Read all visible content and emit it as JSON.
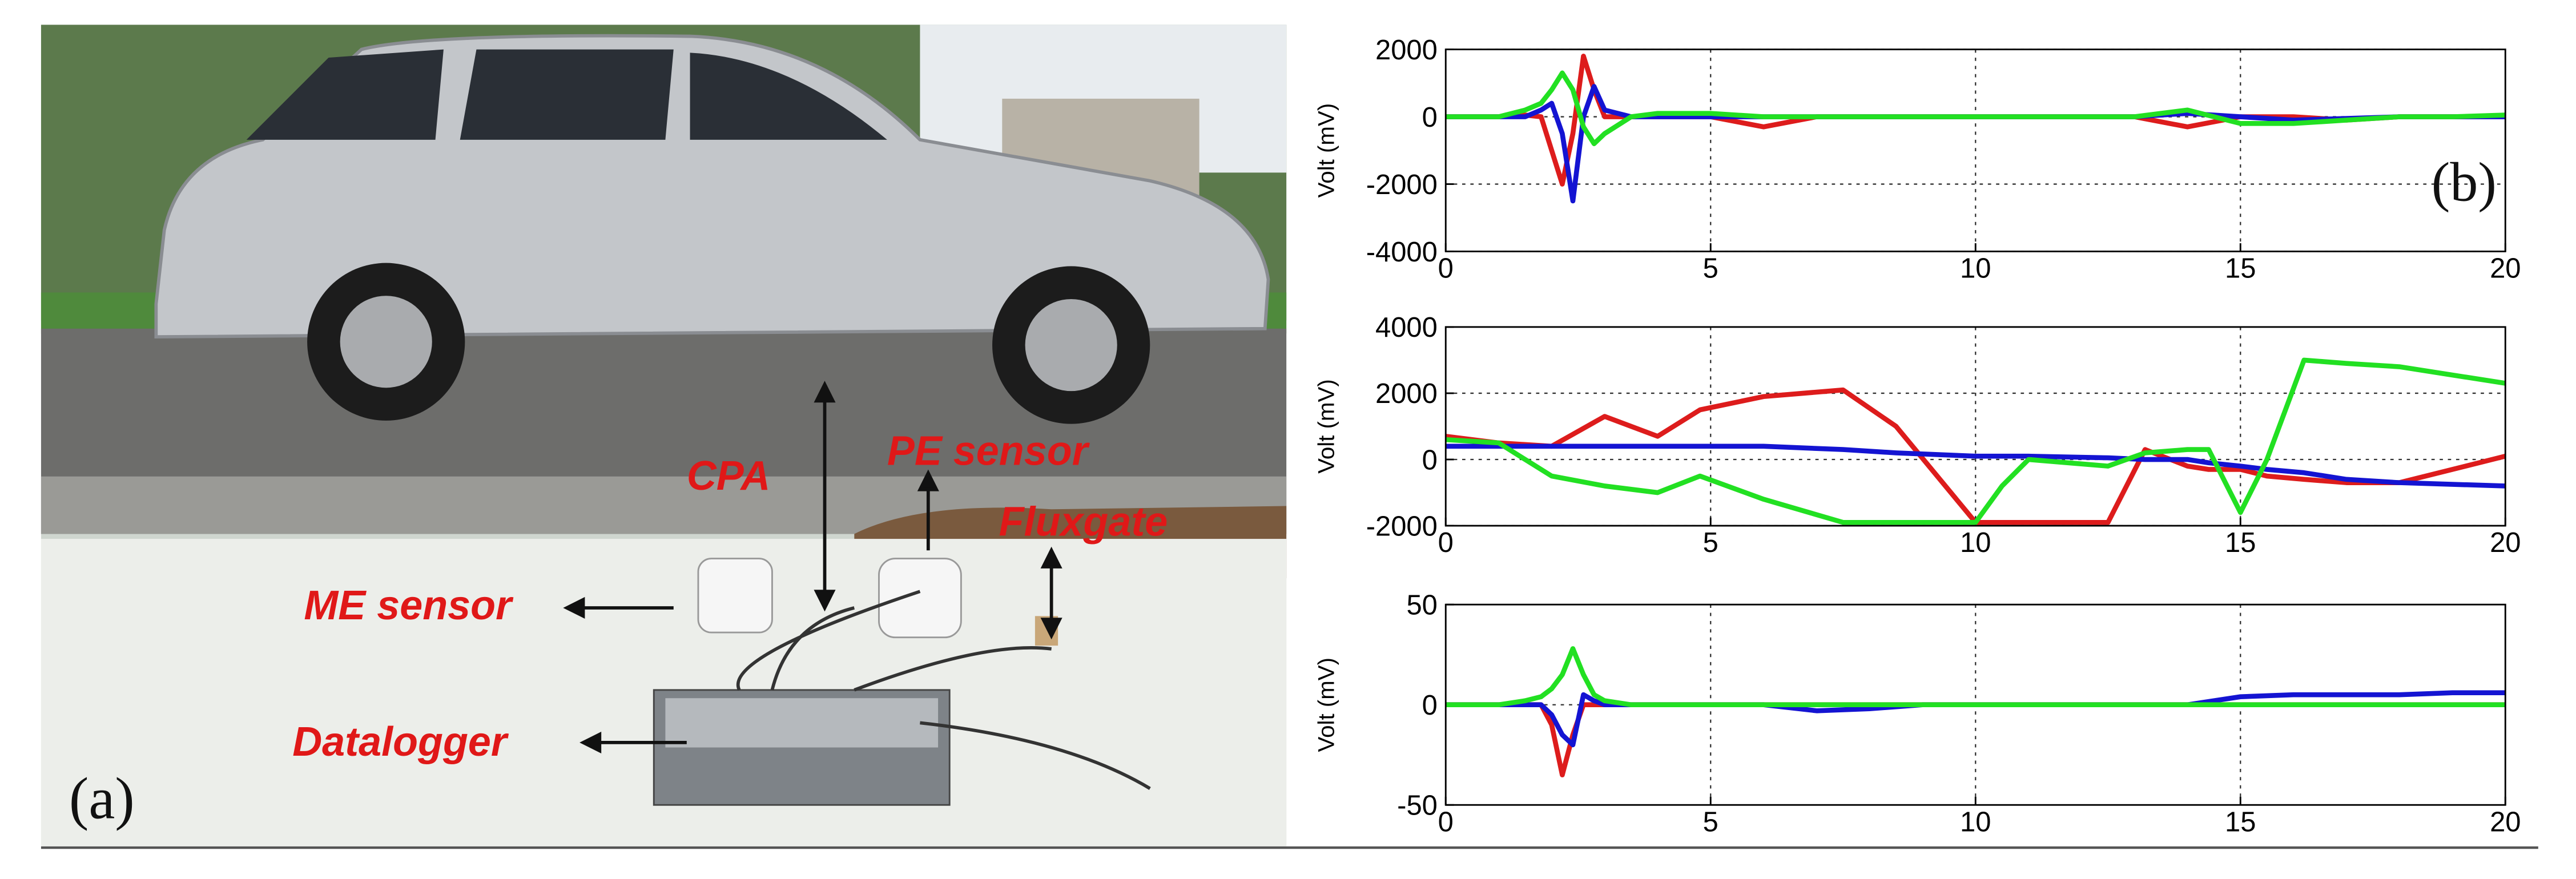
{
  "photo": {
    "panel_label": "(a)",
    "labels": [
      "CPA",
      "PE sensor",
      "Fluxgate",
      "ME sensor",
      "Datalogger"
    ]
  },
  "chart_data": [
    {
      "type": "line",
      "panel_label": "(b)",
      "ylabel": "Volt (mV)",
      "x": [
        0,
        1,
        1.5,
        1.8,
        2,
        2.2,
        2.4,
        2.6,
        2.8,
        3,
        3.5,
        4,
        5,
        6,
        7,
        8,
        9,
        10,
        11,
        12,
        13,
        14,
        15,
        16,
        17,
        18,
        19,
        20
      ],
      "series": [
        {
          "color": "#dd1c1c",
          "values": [
            0,
            0,
            50,
            0,
            -1000,
            -2000,
            -500,
            1800,
            800,
            0,
            0,
            0,
            0,
            -300,
            0,
            0,
            0,
            0,
            0,
            0,
            0,
            -300,
            0,
            0,
            -100,
            0,
            0,
            0
          ]
        },
        {
          "color": "#1414d2",
          "values": [
            0,
            0,
            0,
            200,
            400,
            -500,
            -2500,
            0,
            900,
            200,
            0,
            0,
            0,
            0,
            0,
            0,
            0,
            0,
            0,
            0,
            0,
            100,
            0,
            -100,
            -50,
            0,
            0,
            0
          ]
        },
        {
          "color": "#22e022",
          "values": [
            0,
            0,
            200,
            400,
            800,
            1300,
            800,
            -300,
            -800,
            -500,
            0,
            100,
            100,
            0,
            0,
            0,
            0,
            0,
            0,
            0,
            0,
            200,
            -200,
            -200,
            -100,
            0,
            0,
            50
          ]
        }
      ],
      "xlim": [
        0,
        20
      ],
      "ylim": [
        -4000,
        2000
      ],
      "xticks": [
        0,
        5,
        10,
        15,
        20
      ],
      "yticks": [
        -4000,
        -2000,
        0,
        2000
      ],
      "grid": true
    },
    {
      "type": "line",
      "ylabel": "Volt (mV)",
      "x": [
        0,
        1,
        2,
        3,
        4,
        4.8,
        6,
        7.5,
        8.5,
        10,
        10.5,
        11,
        12.5,
        13.2,
        14,
        14.4,
        15,
        15.5,
        16.2,
        17,
        18,
        20
      ],
      "series": [
        {
          "color": "#dd1c1c",
          "values": [
            700,
            500,
            400,
            1300,
            700,
            1500,
            1900,
            2100,
            1000,
            -1900,
            -1900,
            -1900,
            -1900,
            300,
            -200,
            -300,
            -300,
            -500,
            -600,
            -700,
            -700,
            100
          ]
        },
        {
          "color": "#1414d2",
          "values": [
            400,
            400,
            400,
            400,
            400,
            400,
            400,
            300,
            200,
            100,
            100,
            100,
            50,
            0,
            0,
            -100,
            -200,
            -300,
            -400,
            -600,
            -700,
            -800
          ]
        },
        {
          "color": "#22e022",
          "values": [
            600,
            500,
            -500,
            -800,
            -1000,
            -500,
            -1200,
            -1900,
            -1900,
            -1900,
            -800,
            0,
            -200,
            200,
            300,
            300,
            -1600,
            0,
            3000,
            2900,
            2800,
            2300
          ]
        }
      ],
      "xlim": [
        0,
        20
      ],
      "ylim": [
        -2000,
        4000
      ],
      "xticks": [
        0,
        5,
        10,
        15,
        20
      ],
      "yticks": [
        -2000,
        0,
        2000,
        4000
      ],
      "grid": true
    },
    {
      "type": "line",
      "ylabel": "Volt (mV)",
      "x": [
        0,
        1,
        1.5,
        1.8,
        2,
        2.2,
        2.4,
        2.6,
        2.8,
        3,
        3.5,
        4,
        5,
        6,
        7,
        8,
        9,
        10,
        11,
        12,
        13,
        14,
        15,
        16,
        17,
        18,
        19,
        20
      ],
      "series": [
        {
          "color": "#dd1c1c",
          "values": [
            0,
            0,
            0,
            0,
            -10,
            -35,
            -15,
            0,
            0,
            0,
            0,
            0,
            0,
            0,
            0,
            0,
            0,
            0,
            0,
            0,
            0,
            0,
            0,
            0,
            0,
            0,
            0,
            0
          ]
        },
        {
          "color": "#1414d2",
          "values": [
            0,
            0,
            0,
            0,
            -5,
            -15,
            -20,
            5,
            2,
            0,
            0,
            0,
            0,
            0,
            -3,
            -2,
            0,
            0,
            0,
            0,
            0,
            0,
            4,
            5,
            5,
            5,
            6,
            6
          ]
        },
        {
          "color": "#22e022",
          "values": [
            0,
            0,
            2,
            4,
            8,
            15,
            28,
            15,
            5,
            2,
            0,
            0,
            0,
            0,
            0,
            0,
            0,
            0,
            0,
            0,
            0,
            0,
            0,
            0,
            0,
            0,
            0,
            0
          ]
        }
      ],
      "xlim": [
        0,
        20
      ],
      "ylim": [
        -50,
        50
      ],
      "xticks": [
        0,
        5,
        10,
        15,
        20
      ],
      "yticks": [
        -50,
        0,
        50
      ],
      "grid": true
    }
  ]
}
